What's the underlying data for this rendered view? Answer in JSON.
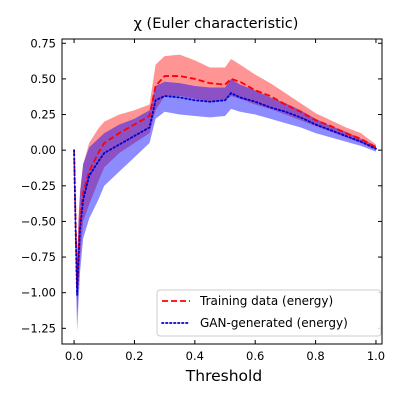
{
  "chart_data": {
    "type": "line",
    "title": "χ (Euler characteristic)",
    "xlabel": "Threshold",
    "ylabel": "",
    "xlim": [
      -0.04,
      1.02
    ],
    "ylim": [
      -1.36,
      0.78
    ],
    "xticks": [
      0.0,
      0.2,
      0.4,
      0.6,
      0.8,
      1.0
    ],
    "xtick_labels": [
      "0.0",
      "0.2",
      "0.4",
      "0.6",
      "0.8",
      "1.0"
    ],
    "yticks": [
      0.75,
      0.5,
      0.25,
      0.0,
      -0.25,
      -0.5,
      -0.75,
      -1.0,
      -1.25
    ],
    "ytick_labels": [
      "0.75",
      "0.50",
      "0.25",
      "0.00",
      "−0.25",
      "−0.50",
      "−0.75",
      "−1.00",
      "−1.25"
    ],
    "grid": false,
    "legend_position": "lower-right",
    "series": [
      {
        "name": "Training data (energy)",
        "color": "#ff0000",
        "linestyle": "dashed",
        "x": [
          0.0,
          0.005,
          0.01,
          0.015,
          0.02,
          0.03,
          0.05,
          0.08,
          0.1,
          0.15,
          0.2,
          0.25,
          0.27,
          0.3,
          0.35,
          0.4,
          0.45,
          0.5,
          0.52,
          0.55,
          0.6,
          0.65,
          0.7,
          0.75,
          0.8,
          0.85,
          0.9,
          0.95,
          1.0
        ],
        "y": [
          0.0,
          -0.5,
          -0.95,
          -0.7,
          -0.5,
          -0.3,
          -0.15,
          -0.02,
          0.05,
          0.12,
          0.18,
          0.24,
          0.45,
          0.52,
          0.52,
          0.5,
          0.47,
          0.46,
          0.5,
          0.48,
          0.42,
          0.38,
          0.32,
          0.27,
          0.21,
          0.17,
          0.12,
          0.08,
          0.02
        ]
      },
      {
        "name": "GAN-generated (energy)",
        "color": "#0000cc",
        "linestyle": "dotted",
        "x": [
          0.0,
          0.005,
          0.01,
          0.015,
          0.02,
          0.03,
          0.05,
          0.08,
          0.1,
          0.15,
          0.2,
          0.25,
          0.27,
          0.3,
          0.35,
          0.4,
          0.45,
          0.5,
          0.52,
          0.55,
          0.6,
          0.65,
          0.7,
          0.75,
          0.8,
          0.85,
          0.9,
          0.95,
          1.0
        ],
        "y": [
          0.0,
          -0.55,
          -1.02,
          -0.75,
          -0.55,
          -0.35,
          -0.18,
          -0.08,
          -0.02,
          0.04,
          0.1,
          0.16,
          0.35,
          0.38,
          0.37,
          0.35,
          0.34,
          0.35,
          0.4,
          0.37,
          0.34,
          0.3,
          0.27,
          0.23,
          0.18,
          0.14,
          0.1,
          0.06,
          0.01
        ]
      }
    ],
    "bands": [
      {
        "series": "Training data (energy)",
        "color": "#ff0000",
        "x": [
          0.0,
          0.005,
          0.01,
          0.015,
          0.02,
          0.03,
          0.05,
          0.08,
          0.1,
          0.15,
          0.2,
          0.25,
          0.27,
          0.3,
          0.35,
          0.4,
          0.45,
          0.5,
          0.52,
          0.55,
          0.6,
          0.65,
          0.7,
          0.75,
          0.8,
          0.85,
          0.9,
          0.95,
          1.0
        ],
        "upper": [
          0.0,
          -0.35,
          -0.75,
          -0.45,
          -0.28,
          -0.1,
          0.05,
          0.15,
          0.2,
          0.25,
          0.28,
          0.32,
          0.6,
          0.66,
          0.67,
          0.63,
          0.58,
          0.58,
          0.64,
          0.6,
          0.53,
          0.47,
          0.4,
          0.33,
          0.26,
          0.21,
          0.16,
          0.12,
          0.04
        ],
        "lower": [
          0.0,
          -0.7,
          -1.15,
          -0.95,
          -0.75,
          -0.5,
          -0.38,
          -0.22,
          -0.12,
          -0.02,
          0.05,
          0.12,
          0.28,
          0.38,
          0.38,
          0.36,
          0.34,
          0.35,
          0.38,
          0.36,
          0.32,
          0.29,
          0.25,
          0.21,
          0.17,
          0.13,
          0.09,
          0.05,
          0.0
        ]
      },
      {
        "series": "GAN-generated (energy)",
        "color": "#0000ff",
        "x": [
          0.0,
          0.005,
          0.01,
          0.015,
          0.02,
          0.03,
          0.05,
          0.08,
          0.1,
          0.15,
          0.2,
          0.25,
          0.27,
          0.3,
          0.35,
          0.4,
          0.45,
          0.5,
          0.52,
          0.55,
          0.6,
          0.65,
          0.7,
          0.75,
          0.8,
          0.85,
          0.9,
          0.95,
          1.0
        ],
        "upper": [
          0.0,
          -0.4,
          -0.82,
          -0.5,
          -0.3,
          -0.1,
          0.02,
          0.08,
          0.12,
          0.18,
          0.22,
          0.28,
          0.45,
          0.48,
          0.47,
          0.45,
          0.44,
          0.44,
          0.5,
          0.46,
          0.42,
          0.37,
          0.33,
          0.28,
          0.22,
          0.17,
          0.13,
          0.08,
          0.03
        ],
        "lower": [
          0.0,
          -0.75,
          -1.27,
          -1.05,
          -0.85,
          -0.62,
          -0.48,
          -0.35,
          -0.25,
          -0.15,
          -0.05,
          0.05,
          0.22,
          0.27,
          0.25,
          0.24,
          0.23,
          0.24,
          0.29,
          0.27,
          0.25,
          0.22,
          0.19,
          0.16,
          0.12,
          0.09,
          0.06,
          0.03,
          -0.01
        ]
      }
    ]
  }
}
